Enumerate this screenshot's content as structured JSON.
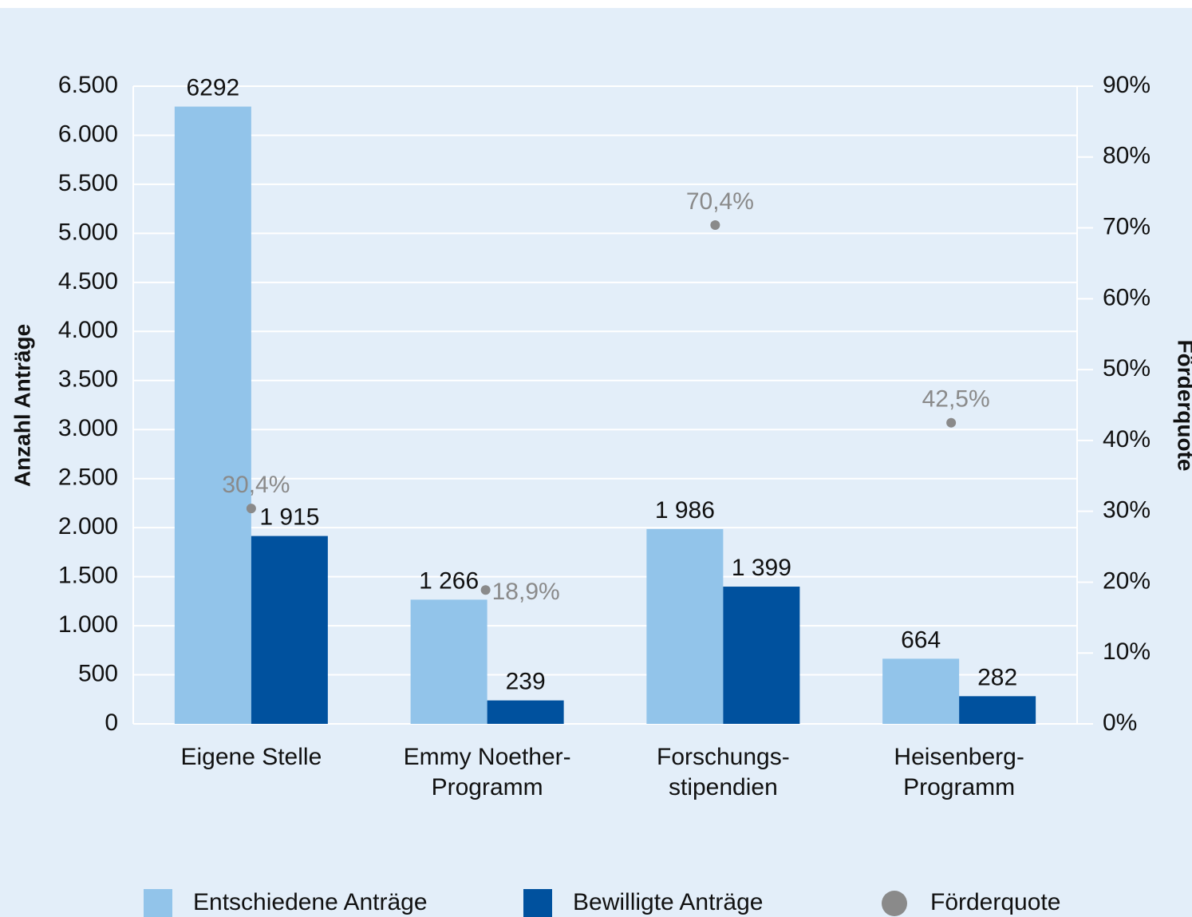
{
  "chart_data": {
    "type": "bar",
    "categories": [
      [
        "Eigene Stelle"
      ],
      [
        "Emmy Noether-",
        "Programm"
      ],
      [
        "Forschungs-",
        "stipendien"
      ],
      [
        "Heisenberg-",
        "Programm"
      ]
    ],
    "series": [
      {
        "name": "Entschiedene Anträge",
        "color": "#92c4ea",
        "values": [
          6292,
          1266,
          1986,
          664
        ],
        "value_labels": [
          "6292",
          "1 266",
          "1 986",
          "664"
        ]
      },
      {
        "name": "Bewilligte Anträge",
        "color": "#00519e",
        "values": [
          1915,
          239,
          1399,
          282
        ],
        "value_labels": [
          "1 915",
          "239",
          "1 399",
          "282"
        ]
      },
      {
        "name": "Förderquote",
        "color": "#8a8a8a",
        "type": "scatter",
        "axis": "y2",
        "values": [
          30.4,
          18.9,
          70.4,
          42.5
        ],
        "value_labels": [
          "30,4%",
          "18,9%",
          "70,4%",
          "42,5%"
        ]
      }
    ],
    "ylabel": "Anzahl Anträge",
    "y2label": "Förderquote",
    "ylim": [
      0,
      6500
    ],
    "yticks": [
      0,
      500,
      {
        "value": 1000,
        "label": "1.000"
      },
      {
        "value": 1500,
        "label": "1.500"
      },
      {
        "value": 2000,
        "label": "2.000"
      },
      {
        "value": 2500,
        "label": "2.500"
      },
      {
        "value": 3000,
        "label": "3.000"
      },
      {
        "value": 3500,
        "label": "3.500"
      },
      {
        "value": 4000,
        "label": "4.000"
      },
      {
        "value": 4500,
        "label": "4.500"
      },
      {
        "value": 5000,
        "label": "5.000"
      },
      {
        "value": 5500,
        "label": "5.500"
      },
      {
        "value": 6000,
        "label": "6.000"
      },
      {
        "value": 6500,
        "label": "6.500"
      }
    ],
    "y2lim": [
      0,
      90
    ],
    "y2ticks": [
      {
        "value": 0,
        "label": "0%"
      },
      {
        "value": 10,
        "label": "10%"
      },
      {
        "value": 20,
        "label": "20%"
      },
      {
        "value": 30,
        "label": "30%"
      },
      {
        "value": 40,
        "label": "40%"
      },
      {
        "value": 50,
        "label": "50%"
      },
      {
        "value": 60,
        "label": "60%"
      },
      {
        "value": 70,
        "label": "70%"
      },
      {
        "value": 80,
        "label": "80%"
      },
      {
        "value": 90,
        "label": "90%"
      }
    ],
    "grid": true,
    "legend": "bottom"
  }
}
